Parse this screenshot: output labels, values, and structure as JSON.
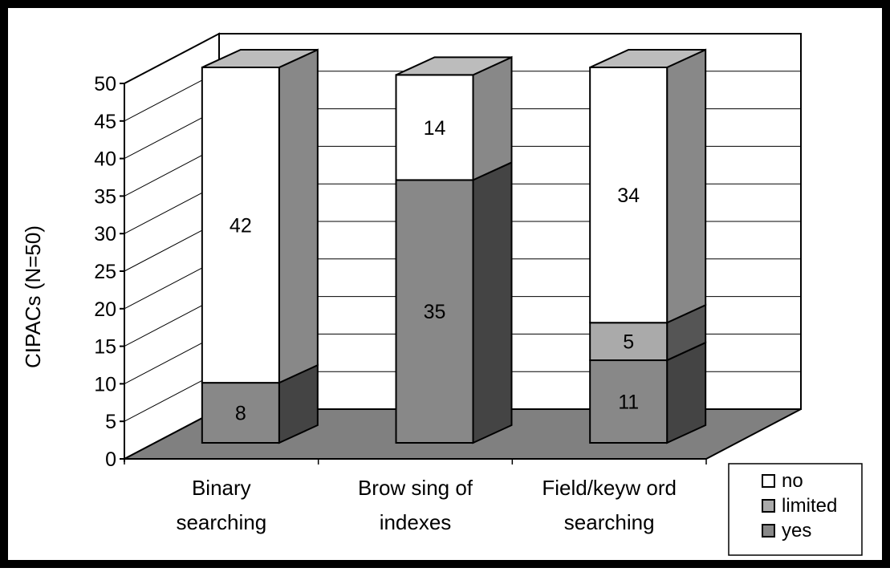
{
  "chart_data": {
    "type": "bar",
    "stacked": true,
    "three_d": true,
    "categories": [
      "Binary searching",
      "Brow sing of indexes",
      "Field/keyw ord searching"
    ],
    "category_label_lines": [
      [
        "Binary",
        "searching"
      ],
      [
        "Brow sing of",
        "indexes"
      ],
      [
        "Field/keyw ord",
        "searching"
      ]
    ],
    "series": [
      {
        "name": "yes",
        "values": [
          8,
          35,
          11
        ],
        "color": "#888888",
        "side_color": "#444444"
      },
      {
        "name": "limited",
        "values": [
          0,
          0,
          5
        ],
        "color": "#aaaaaa",
        "side_color": "#555555"
      },
      {
        "name": "no",
        "values": [
          42,
          14,
          34
        ],
        "color": "#ffffff",
        "side_color": "#888888"
      }
    ],
    "top_color": "#bcbcbc",
    "floor_color": "#808080",
    "ylabel": "CIPACs (N=50)",
    "xlabel": "",
    "ylim": [
      0,
      50
    ],
    "yticks": [
      0,
      5,
      10,
      15,
      20,
      25,
      30,
      35,
      40,
      45,
      50
    ],
    "grid": true,
    "legend_position": "bottom-right",
    "legend": [
      "no",
      "limited",
      "yes"
    ]
  }
}
